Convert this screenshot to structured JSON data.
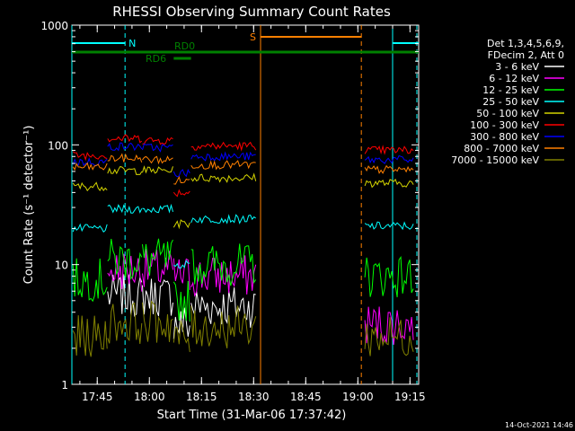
{
  "chart_data": {
    "type": "line",
    "title": "RHESSI Observing Summary Count Rates",
    "xlabel": "Start Time (31-Mar-06 17:37:42)",
    "ylabel": "Count Rate (s⁻¹ detector⁻¹)",
    "yscale": "log",
    "ylim": [
      1,
      1000
    ],
    "xlim": [
      "17:37:42",
      "19:17:30"
    ],
    "x_ticks": [
      "17:45",
      "18:00",
      "18:15",
      "18:30",
      "18:45",
      "19:00",
      "19:15"
    ],
    "y_ticks": [
      "1",
      "10",
      "100",
      "1000"
    ],
    "legend_header": [
      "Det 1,3,4,5,6,9,",
      "FDecim 2, Att 0"
    ],
    "legend_position": "right",
    "series": [
      {
        "name": "3 - 6 keV",
        "color": "#ffffff"
      },
      {
        "name": "6 - 12 keV",
        "color": "#ff00ff"
      },
      {
        "name": "12 - 25 keV",
        "color": "#00ff00"
      },
      {
        "name": "25 - 50 keV",
        "color": "#00ffff"
      },
      {
        "name": "50 - 100 keV",
        "color": "#d4d400"
      },
      {
        "name": "100 - 300 keV",
        "color": "#ff0000"
      },
      {
        "name": "300 - 800 keV",
        "color": "#0000ff"
      },
      {
        "name": "800 - 7000 keV",
        "color": "#ff8000"
      },
      {
        "name": "7000 - 15000 keV",
        "color": "#808000"
      }
    ],
    "segments": [
      {
        "start": "17:38",
        "end": "17:48",
        "values": {
          "3 - 6 keV": null,
          "6 - 12 keV": null,
          "12 - 25 keV": 7.5,
          "25 - 50 keV": 20,
          "50 - 100 keV": 45,
          "100 - 300 keV": 82,
          "300 - 800 keV": 72,
          "800 - 7000 keV": 65,
          "7000 - 15000 keV": 2.5
        }
      },
      {
        "start": "17:48",
        "end": "17:58",
        "values": {
          "3 - 6 keV": 5.5,
          "6 - 12 keV": 9,
          "12 - 25 keV": 11,
          "25 - 50 keV": 29,
          "50 - 100 keV": 61,
          "100 - 300 keV": 113,
          "300 - 800 keV": 97,
          "800 - 7000 keV": 77,
          "7000 - 15000 keV": 3.3
        }
      },
      {
        "start": "17:58",
        "end": "18:07",
        "values": {
          "3 - 6 keV": 5.5,
          "6 - 12 keV": 9,
          "12 - 25 keV": 11,
          "25 - 50 keV": 29,
          "50 - 100 keV": 61,
          "100 - 300 keV": 109,
          "300 - 800 keV": 95,
          "800 - 7000 keV": 75,
          "7000 - 15000 keV": 3.3
        }
      },
      {
        "start": "18:07",
        "end": "18:12",
        "values": {
          "3 - 6 keV": 3.2,
          "6 - 12 keV": 8,
          "12 - 25 keV": 5,
          "25 - 50 keV": 10,
          "50 - 100 keV": 22,
          "100 - 300 keV": 40,
          "300 - 800 keV": 58,
          "800 - 7000 keV": 50,
          "7000 - 15000 keV": 2.4
        }
      },
      {
        "start": "18:12",
        "end": "18:31",
        "values": {
          "3 - 6 keV": 4.5,
          "6 - 12 keV": 8,
          "12 - 25 keV": 10,
          "25 - 50 keV": 24,
          "50 - 100 keV": 53,
          "100 - 300 keV": 98,
          "300 - 800 keV": 80,
          "800 - 7000 keV": 68,
          "7000 - 15000 keV": 3.0
        }
      },
      {
        "start": "19:02",
        "end": "19:16",
        "values": {
          "3 - 6 keV": null,
          "6 - 12 keV": 3.2,
          "12 - 25 keV": 8,
          "25 - 50 keV": 21,
          "50 - 100 keV": 48,
          "100 - 300 keV": 90,
          "300 - 800 keV": 75,
          "800 - 7000 keV": 62,
          "7000 - 15000 keV": 2.5
        }
      }
    ],
    "annotations": [
      {
        "label": "N",
        "type": "night",
        "color": "#00ffff",
        "start": "17:37:42",
        "end": "17:53",
        "continues": "19:10-19:17:30"
      },
      {
        "label": "S",
        "type": "saa",
        "color": "#ff8000",
        "start": "18:32",
        "end": "19:01"
      },
      {
        "label": "RD0",
        "type": "decimation",
        "color": "#008000",
        "start": "17:37:42",
        "end": "19:17:30"
      },
      {
        "label": "RD6",
        "type": "decimation",
        "color": "#008000",
        "start": "18:07",
        "end": "18:12"
      }
    ],
    "footer": "14-Oct-2021 14:46"
  }
}
